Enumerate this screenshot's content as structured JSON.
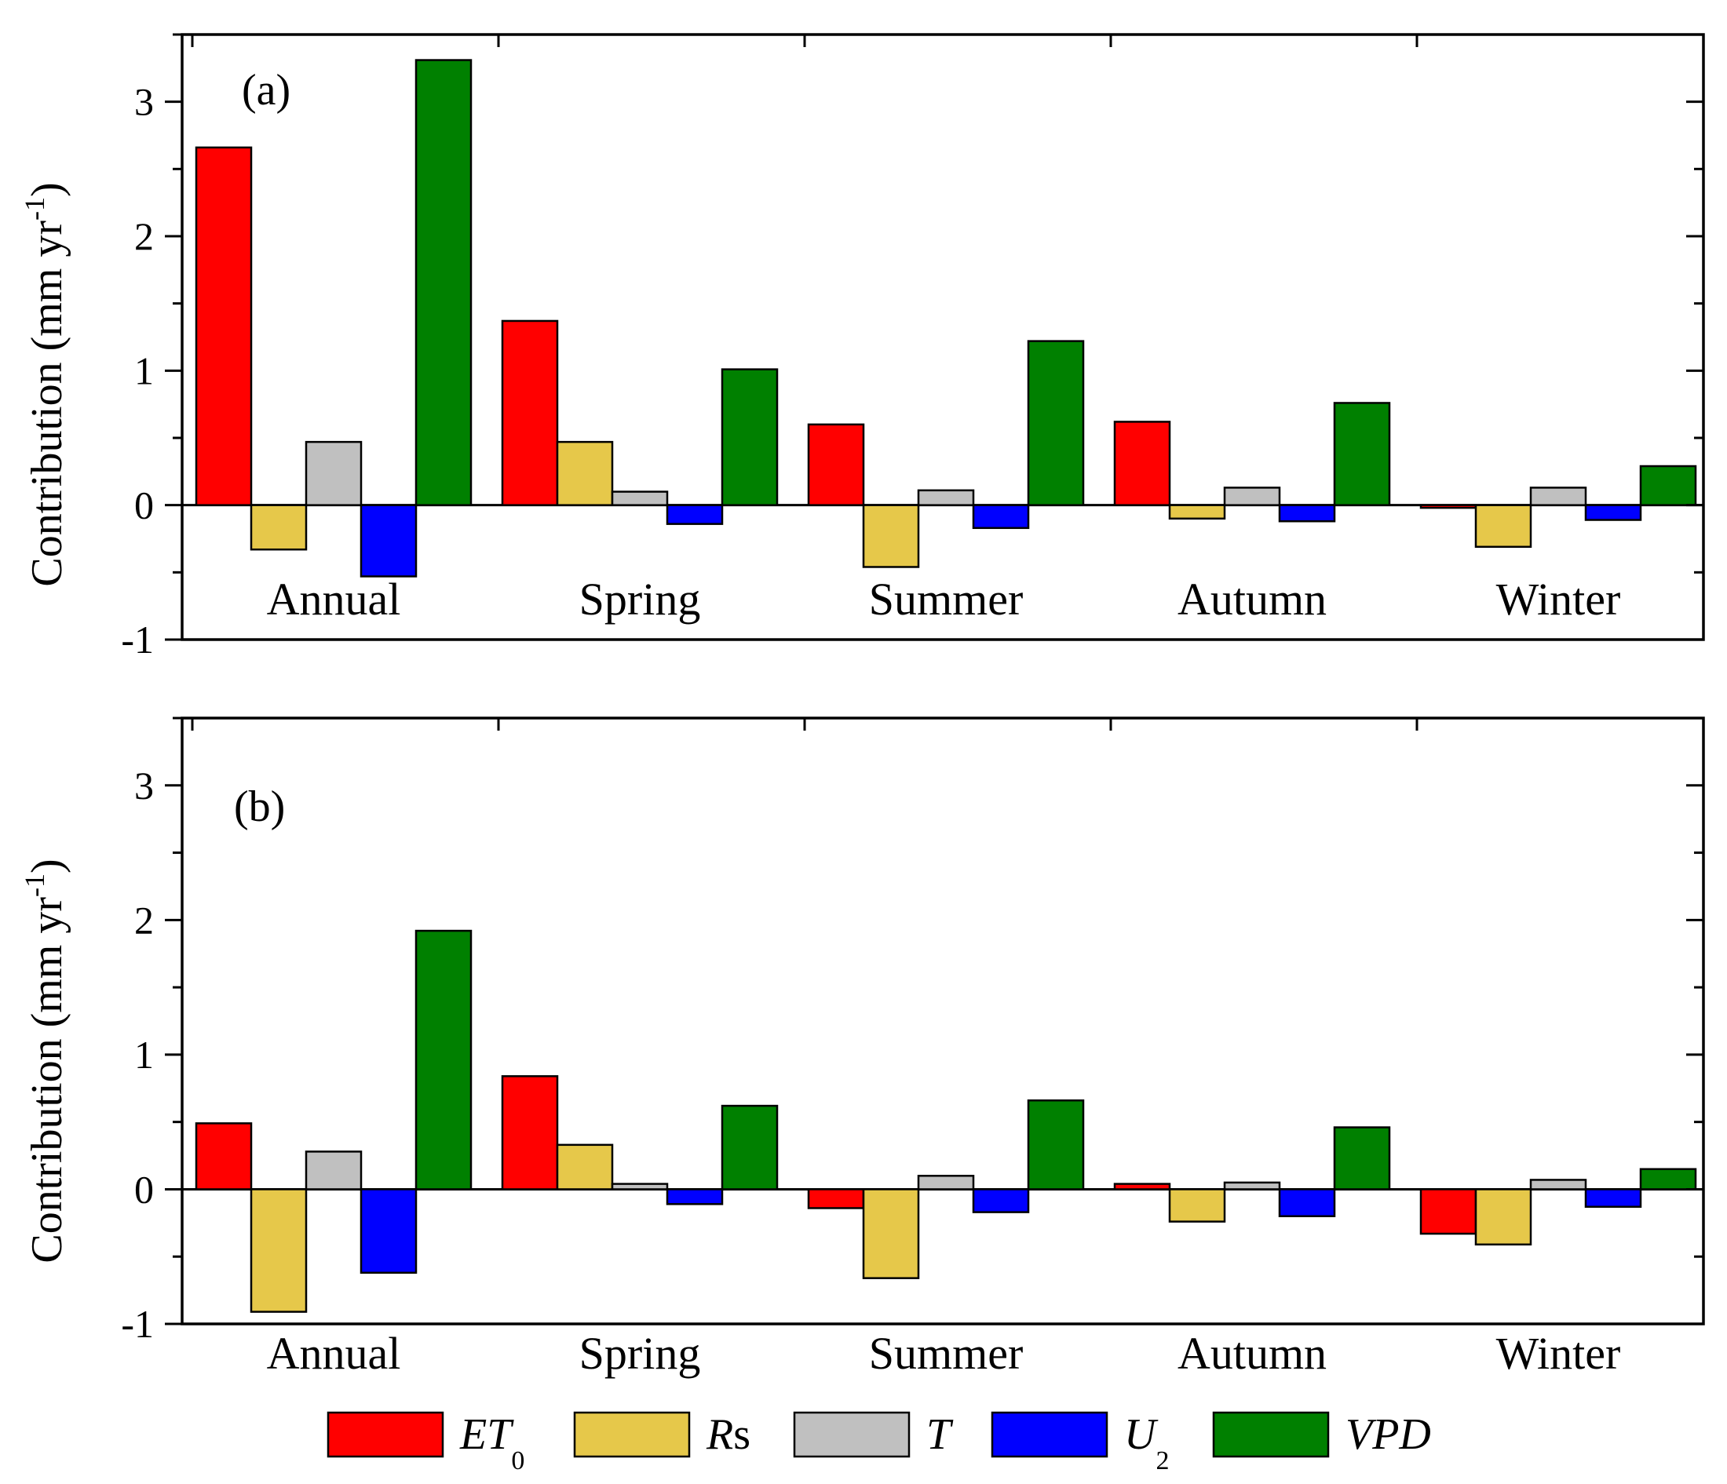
{
  "chart_data": [
    {
      "type": "bar",
      "panel_label": "(a)",
      "categories": [
        "Annual",
        "Spring",
        "Summer",
        "Autumn",
        "Winter"
      ],
      "ylabel": "Contribution (mm yr-1)",
      "ylim": [
        -1,
        3.5
      ],
      "yticks": [
        -1,
        0,
        1,
        2,
        3
      ],
      "series": [
        {
          "name": "ET0",
          "values": [
            2.66,
            1.37,
            0.6,
            0.62,
            -0.02
          ]
        },
        {
          "name": "Rs",
          "values": [
            -0.33,
            0.47,
            -0.46,
            -0.1,
            -0.31
          ]
        },
        {
          "name": "T",
          "values": [
            0.47,
            0.1,
            0.11,
            0.13,
            0.13
          ]
        },
        {
          "name": "U2",
          "values": [
            -0.53,
            -0.14,
            -0.17,
            -0.12,
            -0.11
          ]
        },
        {
          "name": "VPD",
          "values": [
            3.31,
            1.01,
            1.22,
            0.76,
            0.29
          ]
        }
      ]
    },
    {
      "type": "bar",
      "panel_label": "(b)",
      "categories": [
        "Annual",
        "Spring",
        "Summer",
        "Autumn",
        "Winter"
      ],
      "ylabel": "Contribution (mm yr-1)",
      "ylim": [
        -1,
        3.5
      ],
      "yticks": [
        -1,
        0,
        1,
        2,
        3
      ],
      "series": [
        {
          "name": "ET0",
          "values": [
            0.49,
            0.84,
            -0.14,
            0.04,
            -0.33
          ]
        },
        {
          "name": "Rs",
          "values": [
            -0.91,
            0.33,
            -0.66,
            -0.24,
            -0.41
          ]
        },
        {
          "name": "T",
          "values": [
            0.28,
            0.04,
            0.1,
            0.05,
            0.07
          ]
        },
        {
          "name": "U2",
          "values": [
            -0.62,
            -0.11,
            -0.17,
            -0.2,
            -0.13
          ]
        },
        {
          "name": "VPD",
          "values": [
            1.92,
            0.62,
            0.66,
            0.46,
            0.15
          ]
        }
      ]
    }
  ],
  "legend": [
    {
      "key": "ET0",
      "main": "ET",
      "sub": "0",
      "color": "#ff0000"
    },
    {
      "key": "Rs",
      "main": "R",
      "plain": "s",
      "color": "#e6c84a"
    },
    {
      "key": "T",
      "main": "T",
      "color": "#c0c0c0"
    },
    {
      "key": "U2",
      "main": "U",
      "sub": "2",
      "color": "#0000ff"
    },
    {
      "key": "VPD",
      "main": "VPD",
      "color": "#008000"
    }
  ],
  "ylabel_parts": {
    "main": "Contribution (mm yr",
    "sup": "-1",
    "close": ")"
  }
}
